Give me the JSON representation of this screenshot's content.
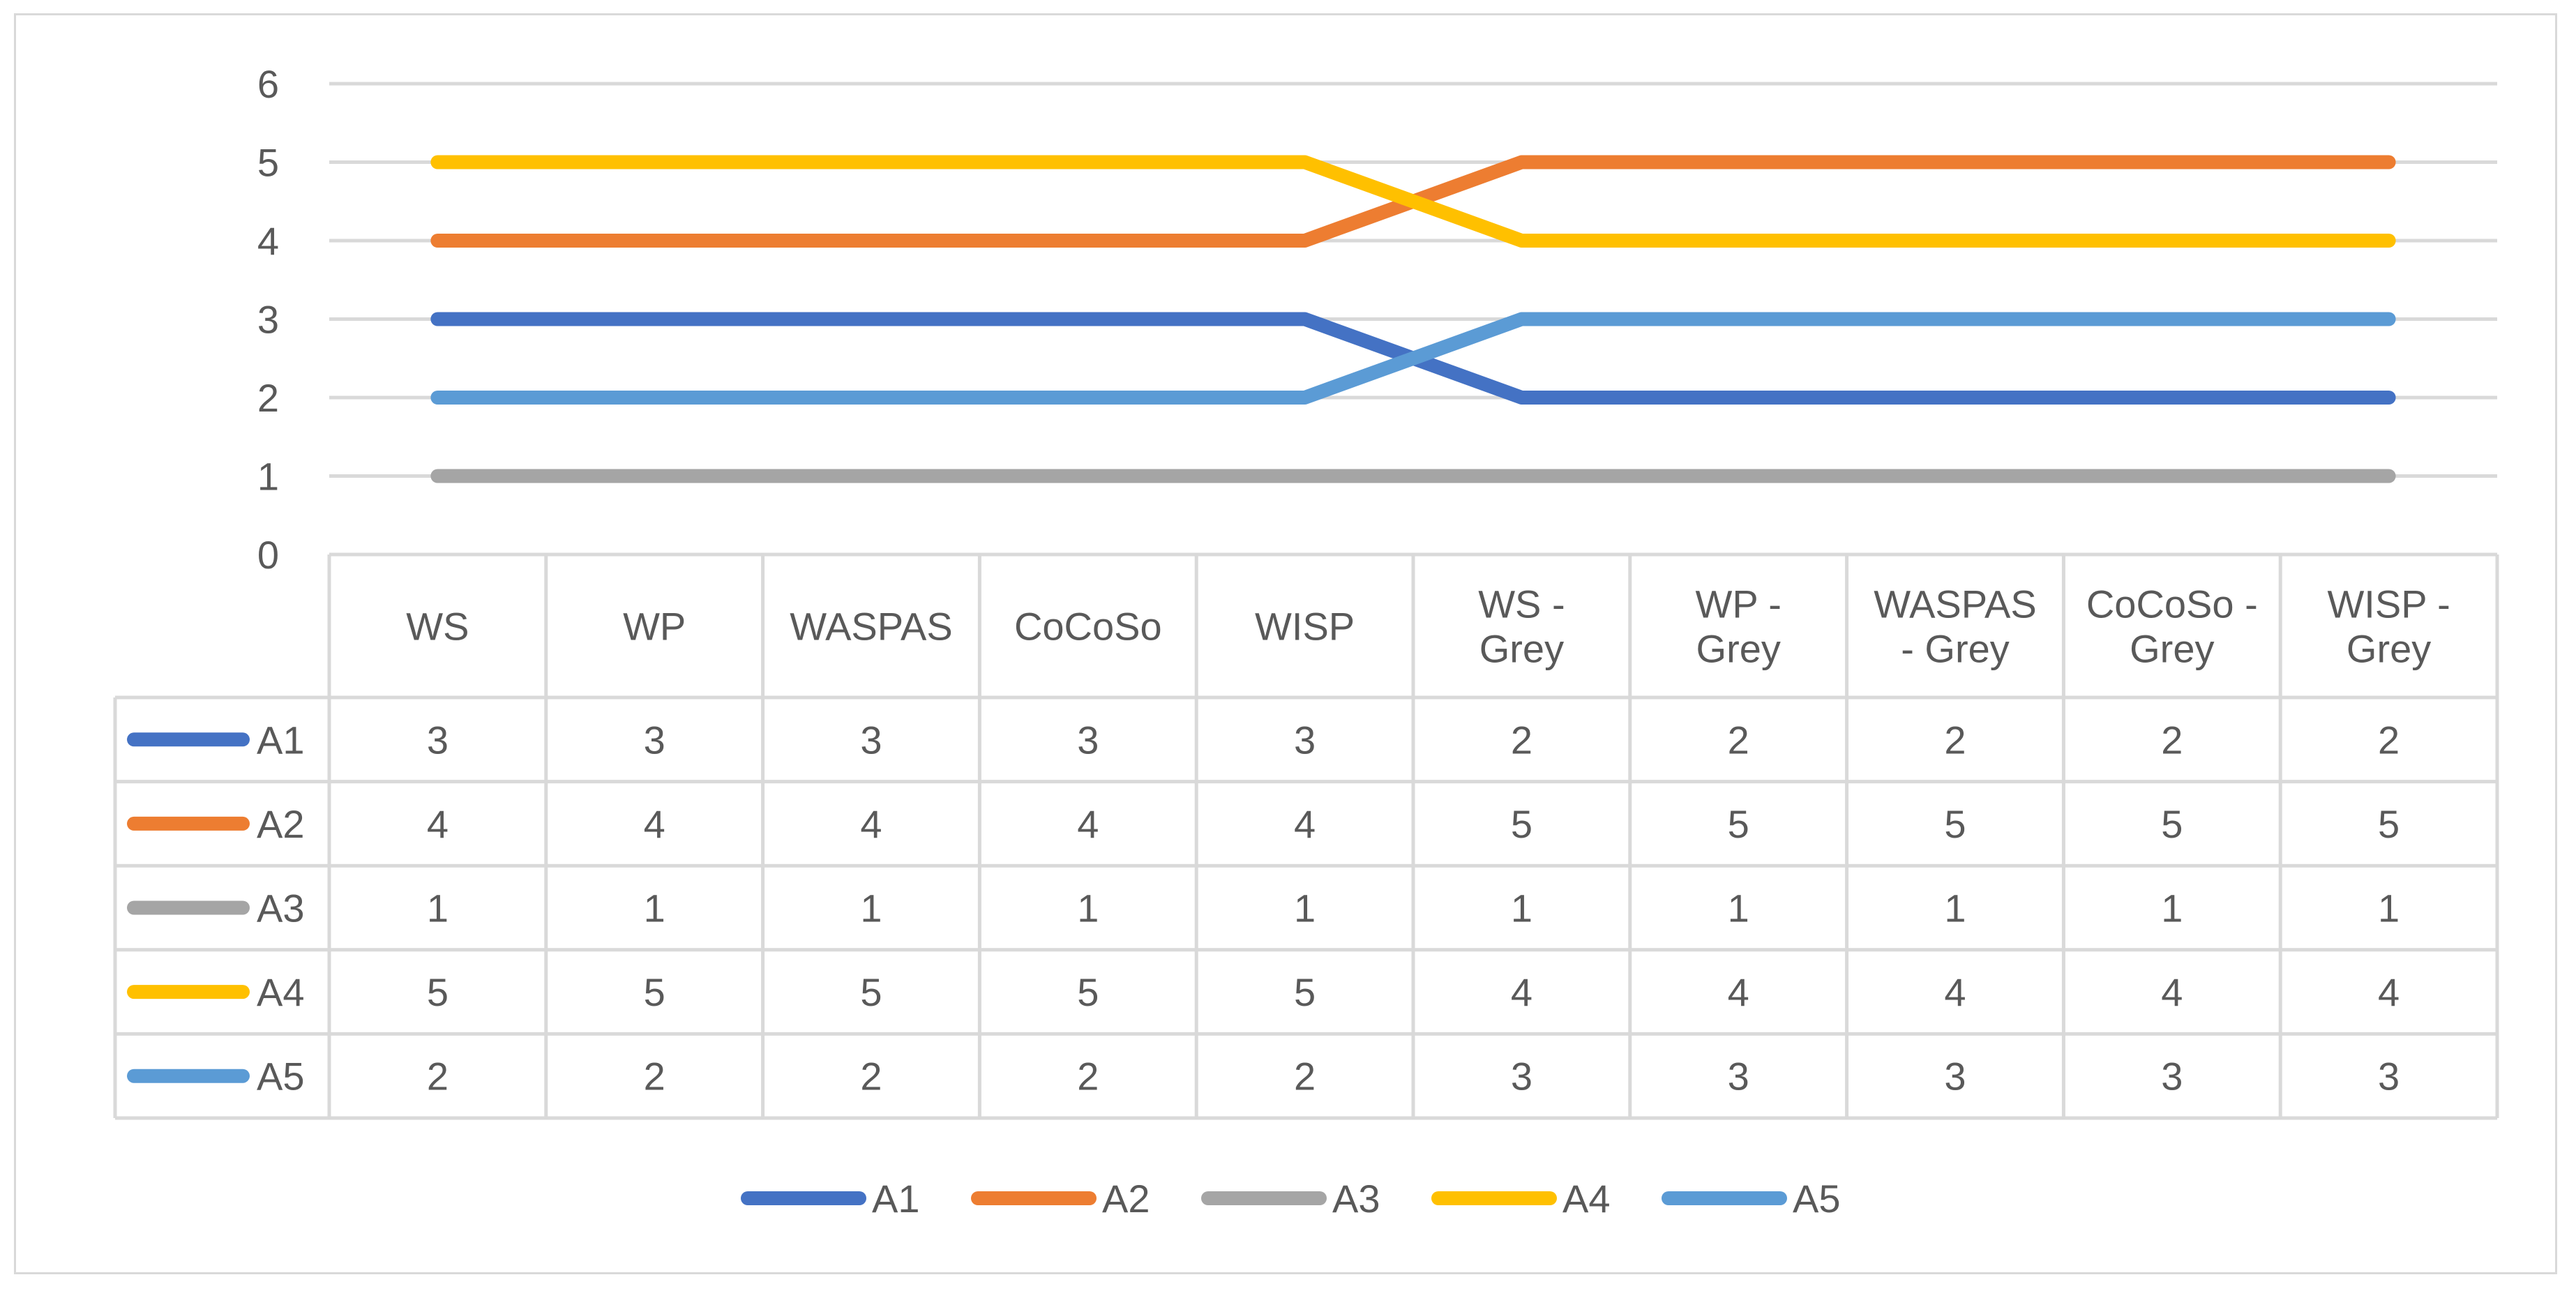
{
  "chart_data": {
    "type": "line",
    "categories": [
      [
        "WS"
      ],
      [
        "WP"
      ],
      [
        "WASPAS"
      ],
      [
        "CoCoSo"
      ],
      [
        "WISP"
      ],
      [
        "WS -",
        "Grey"
      ],
      [
        "WP -",
        "Grey"
      ],
      [
        "WASPAS",
        "- Grey"
      ],
      [
        "CoCoSo  -",
        "Grey"
      ],
      [
        "WISP -",
        "Grey"
      ]
    ],
    "series": [
      {
        "name": "A1",
        "color": "#4472c4",
        "values": [
          3,
          3,
          3,
          3,
          3,
          2,
          2,
          2,
          2,
          2
        ]
      },
      {
        "name": "A2",
        "color": "#ed7d31",
        "values": [
          4,
          4,
          4,
          4,
          4,
          5,
          5,
          5,
          5,
          5
        ]
      },
      {
        "name": "A3",
        "color": "#a5a5a5",
        "values": [
          1,
          1,
          1,
          1,
          1,
          1,
          1,
          1,
          1,
          1
        ]
      },
      {
        "name": "A4",
        "color": "#ffc000",
        "values": [
          5,
          5,
          5,
          5,
          5,
          4,
          4,
          4,
          4,
          4
        ]
      },
      {
        "name": "A5",
        "color": "#5b9bd5",
        "values": [
          2,
          2,
          2,
          2,
          2,
          3,
          3,
          3,
          3,
          3
        ]
      }
    ],
    "yticks": [
      "0",
      "1",
      "2",
      "3",
      "4",
      "5",
      "6"
    ],
    "ylim": [
      0,
      6
    ],
    "grid": true,
    "data_table": true,
    "legend_position": "bottom",
    "gridline_color": "#d9d9d9",
    "text_color": "#595959"
  }
}
